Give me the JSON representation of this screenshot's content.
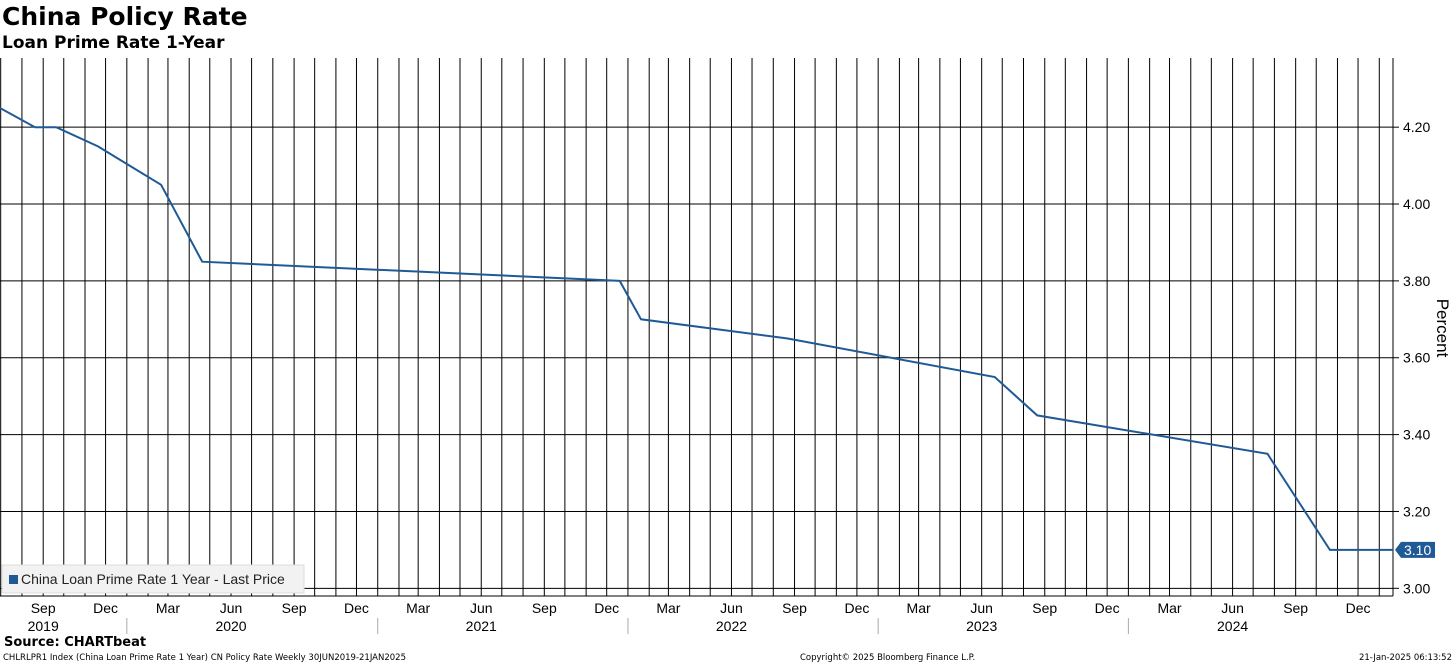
{
  "chart_data": {
    "type": "line",
    "title": "China Policy Rate",
    "subtitle": "Loan Prime Rate 1-Year",
    "ylabel": "Percent",
    "ylim": [
      2.98,
      4.38
    ],
    "yticks": [
      3.0,
      3.2,
      3.4,
      3.6,
      3.8,
      4.0,
      4.2
    ],
    "ytick_labels": [
      "3.00",
      "3.20",
      "3.40",
      "3.60",
      "3.80",
      "4.00",
      "4.20"
    ],
    "xlim": [
      "2019-06-30",
      "2025-01-21"
    ],
    "xticks": [
      {
        "date": "2019-09-01",
        "month": "Sep",
        "year": "2019"
      },
      {
        "date": "2019-12-01",
        "month": "Dec",
        "year": ""
      },
      {
        "date": "2020-03-01",
        "month": "Mar",
        "year": ""
      },
      {
        "date": "2020-06-01",
        "month": "Jun",
        "year": "2020"
      },
      {
        "date": "2020-09-01",
        "month": "Sep",
        "year": ""
      },
      {
        "date": "2020-12-01",
        "month": "Dec",
        "year": ""
      },
      {
        "date": "2021-03-01",
        "month": "Mar",
        "year": ""
      },
      {
        "date": "2021-06-01",
        "month": "Jun",
        "year": "2021"
      },
      {
        "date": "2021-09-01",
        "month": "Sep",
        "year": ""
      },
      {
        "date": "2021-12-01",
        "month": "Dec",
        "year": ""
      },
      {
        "date": "2022-03-01",
        "month": "Mar",
        "year": ""
      },
      {
        "date": "2022-06-01",
        "month": "Jun",
        "year": "2022"
      },
      {
        "date": "2022-09-01",
        "month": "Sep",
        "year": ""
      },
      {
        "date": "2022-12-01",
        "month": "Dec",
        "year": ""
      },
      {
        "date": "2023-03-01",
        "month": "Mar",
        "year": ""
      },
      {
        "date": "2023-06-01",
        "month": "Jun",
        "year": "2023"
      },
      {
        "date": "2023-09-01",
        "month": "Sep",
        "year": ""
      },
      {
        "date": "2023-12-01",
        "month": "Dec",
        "year": ""
      },
      {
        "date": "2024-03-01",
        "month": "Mar",
        "year": ""
      },
      {
        "date": "2024-06-01",
        "month": "Jun",
        "year": "2024"
      },
      {
        "date": "2024-09-01",
        "month": "Sep",
        "year": ""
      },
      {
        "date": "2024-12-01",
        "month": "Dec",
        "year": ""
      }
    ],
    "year_separators": [
      "2020-01-01",
      "2021-01-01",
      "2022-01-01",
      "2023-01-01",
      "2024-01-01"
    ],
    "grid": true,
    "vertical_gridline_frequency": "monthly",
    "legend_position": "bottom-left",
    "series": [
      {
        "name": "China Loan Prime Rate 1 Year - Last Price",
        "color": "#1f5a96",
        "step": true,
        "x": [
          "2019-06-30",
          "2019-08-20",
          "2019-09-20",
          "2019-11-20",
          "2020-02-20",
          "2020-04-20",
          "2021-12-20",
          "2022-01-20",
          "2022-08-22",
          "2023-06-20",
          "2023-08-21",
          "2024-07-22",
          "2024-10-21",
          "2025-01-21"
        ],
        "y": [
          4.25,
          4.2,
          4.2,
          4.15,
          4.05,
          3.85,
          3.8,
          3.7,
          3.65,
          3.55,
          3.45,
          3.35,
          3.1,
          3.1
        ]
      }
    ],
    "last_value_label": "3.10"
  },
  "footer": {
    "source": "Source: CHARTbeat",
    "ticker_line": "CHLRLPR1 Index (China Loan Prime Rate 1 Year) CN Policy Rate  Weekly 30JUN2019-21JAN2025",
    "copyright": "Copyright© 2025 Bloomberg Finance L.P.",
    "timestamp": "21-Jan-2025 06:13:52"
  }
}
